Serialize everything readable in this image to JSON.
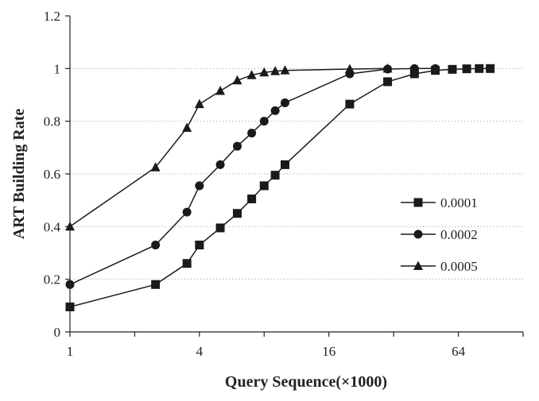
{
  "chart_data": {
    "type": "line",
    "title": "",
    "xlabel": "Query Sequence(×1000)",
    "ylabel": "ART Building Rate",
    "x_scale": "log2",
    "xlim": [
      1,
      128
    ],
    "ylim": [
      0,
      1.2
    ],
    "x_ticks": [
      1,
      4,
      16,
      64
    ],
    "x_tick_labels": [
      "1",
      "4",
      "16",
      "64"
    ],
    "y_ticks": [
      0,
      0.2,
      0.4,
      0.6,
      0.8,
      1,
      1.2
    ],
    "y_tick_labels": [
      "0",
      "0.2",
      "0.4",
      "0.6",
      "0.8",
      "1",
      "1.2"
    ],
    "grid": "horizontal dotted",
    "legend_position": "right",
    "series": [
      {
        "name": "0.0001",
        "marker": "square",
        "color": "#1a1a1a",
        "x": [
          1,
          2.5,
          3.5,
          4,
          5,
          6,
          7,
          8,
          9,
          10,
          20,
          30,
          40,
          50,
          60,
          70,
          80,
          90
        ],
        "y": [
          0.095,
          0.18,
          0.26,
          0.33,
          0.395,
          0.45,
          0.505,
          0.555,
          0.595,
          0.635,
          0.865,
          0.95,
          0.98,
          0.993,
          0.997,
          0.999,
          1.0,
          1.0
        ]
      },
      {
        "name": "0.0002",
        "marker": "circle",
        "color": "#1a1a1a",
        "x": [
          1,
          2.5,
          3.5,
          4,
          5,
          6,
          7,
          8,
          9,
          10,
          20,
          30,
          40,
          50
        ],
        "y": [
          0.18,
          0.33,
          0.455,
          0.555,
          0.635,
          0.705,
          0.755,
          0.8,
          0.84,
          0.87,
          0.98,
          0.998,
          1.0,
          1.0
        ]
      },
      {
        "name": "0.0005",
        "marker": "triangle",
        "color": "#1a1a1a",
        "x": [
          1,
          2.5,
          3.5,
          4,
          5,
          6,
          7,
          8,
          9,
          10,
          20,
          30
        ],
        "y": [
          0.4,
          0.625,
          0.775,
          0.865,
          0.915,
          0.955,
          0.975,
          0.985,
          0.99,
          0.993,
          0.998,
          1.0
        ]
      }
    ]
  }
}
